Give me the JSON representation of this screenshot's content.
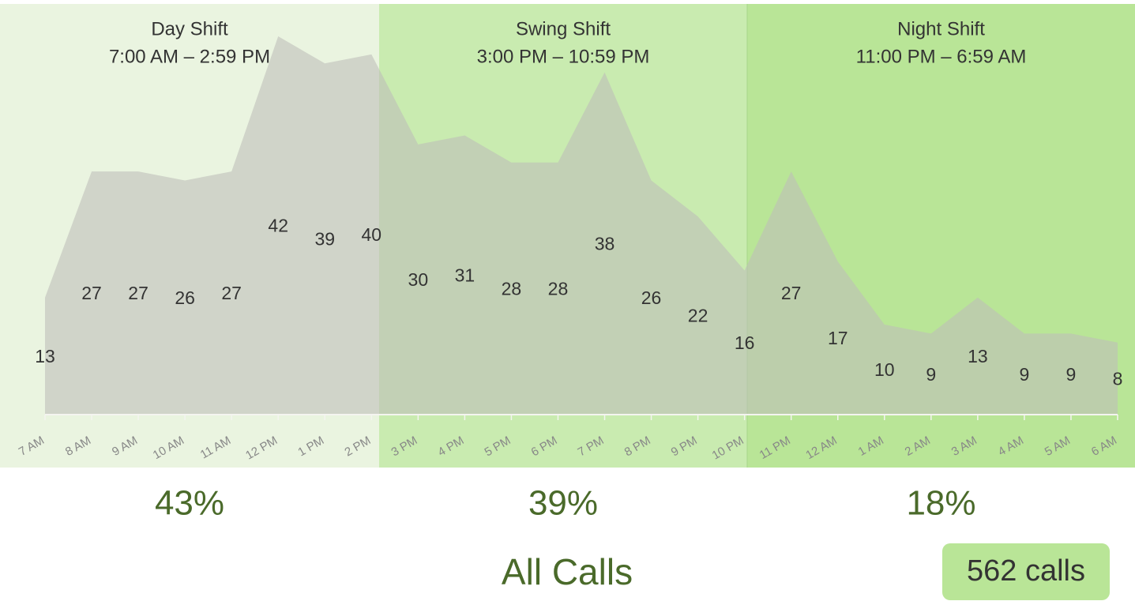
{
  "chart_data": {
    "type": "area",
    "title": "All Calls",
    "categories": [
      "7 AM",
      "8 AM",
      "9 AM",
      "10 AM",
      "11 AM",
      "12 PM",
      "1 PM",
      "2 PM",
      "3 PM",
      "4 PM",
      "5 PM",
      "6 PM",
      "7 PM",
      "8 PM",
      "9 PM",
      "10 PM",
      "11 PM",
      "12 AM",
      "1 AM",
      "2 AM",
      "3 AM",
      "4 AM",
      "5 AM",
      "6 AM"
    ],
    "values": [
      13,
      27,
      27,
      26,
      27,
      42,
      39,
      40,
      30,
      31,
      28,
      28,
      38,
      26,
      22,
      16,
      27,
      17,
      10,
      9,
      13,
      9,
      9,
      8
    ],
    "ylim": [
      0,
      45.6
    ],
    "color": "#bebeb9",
    "shifts": [
      {
        "name": "Day Shift",
        "hours": "7:00 AM – 2:59 PM",
        "color": "#eaf4e0"
      },
      {
        "name": "Swing Shift",
        "hours": "3:00 PM – 10:59 PM",
        "color": "#c9ebb0"
      },
      {
        "name": "Night Shift",
        "hours": "11:00 PM – 6:59 AM",
        "color": "#b9e597"
      }
    ],
    "shares": [
      43,
      39,
      18
    ],
    "share_labels": [
      "43%",
      "39%",
      "18%"
    ],
    "total_label": "562 calls"
  }
}
